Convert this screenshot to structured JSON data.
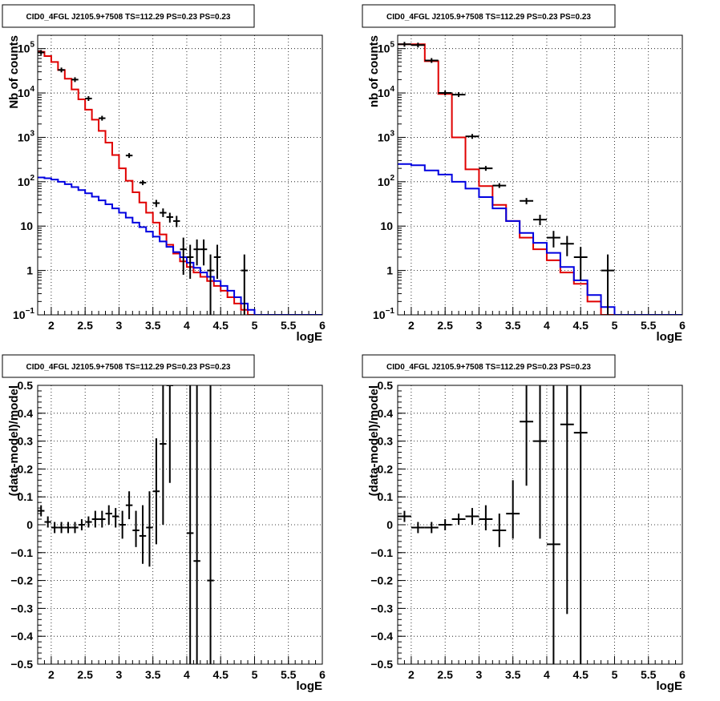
{
  "chart_data": [
    {
      "type": "line",
      "title": "CID0_4FGL J2105.9+7508 TS=112.29 PS=0.23 PS=0.23",
      "xlabel": "logE",
      "ylabel": "Nb of counts",
      "xlim": [
        1.8,
        6.0
      ],
      "ylim": [
        0.1,
        200000
      ],
      "yscale": "log",
      "grid": true,
      "xticks": [
        "2",
        "2.5",
        "3",
        "3.5",
        "4",
        "4.5",
        "5",
        "5.5",
        "6"
      ],
      "yticks": [
        {
          "v": 0.1,
          "base": "10",
          "exp": "−1"
        },
        {
          "v": 1,
          "label": "1"
        },
        {
          "v": 10,
          "label": "10"
        },
        {
          "v": 100,
          "base": "10",
          "exp": "2"
        },
        {
          "v": 1000,
          "base": "10",
          "exp": "3"
        },
        {
          "v": 10000,
          "base": "10",
          "exp": "4"
        },
        {
          "v": 100000,
          "base": "10",
          "exp": "5"
        }
      ],
      "series": [
        {
          "color": "#e00000",
          "kind": "step",
          "x0": 1.8,
          "dx": 0.1,
          "values": [
            85000,
            68000,
            50000,
            33000,
            21000,
            12000,
            7200,
            4200,
            2500,
            1400,
            760,
            400,
            200,
            105,
            58,
            34,
            20,
            12,
            6.5,
            3.8,
            2.4,
            1.6,
            1.2,
            0.9,
            0.72,
            0.58,
            0.45,
            0.35,
            0.25,
            0.18,
            0.13,
            0.1,
            0.1,
            0.1,
            0.1,
            0.1,
            0.1,
            0.1,
            0.1,
            0.1,
            0.1,
            0.1
          ]
        },
        {
          "color": "#0000e0",
          "kind": "step",
          "x0": 1.8,
          "dx": 0.1,
          "values": [
            125,
            120,
            112,
            100,
            88,
            76,
            65,
            55,
            46,
            38,
            31,
            25,
            20,
            15.5,
            12,
            9.5,
            7.5,
            5.8,
            4.5,
            3.4,
            2.6,
            2.0,
            1.5,
            1.15,
            0.9,
            0.72,
            0.58,
            0.45,
            0.35,
            0.25,
            0.18,
            0.13,
            0.1,
            0.1,
            0.1,
            0.1,
            0.1,
            0.1,
            0.1,
            0.1,
            0.1,
            0.1
          ]
        },
        {
          "color": "#000000",
          "kind": "points",
          "xerr": 0.05,
          "points": [
            {
              "x": 1.85,
              "y": 82000
            },
            {
              "x": 2.15,
              "y": 33000
            },
            {
              "x": 2.35,
              "y": 20000
            },
            {
              "x": 2.55,
              "y": 7500
            },
            {
              "x": 2.75,
              "y": 2700
            },
            {
              "x": 3.15,
              "y": 390,
              "lo": 370,
              "hi": 410
            },
            {
              "x": 3.35,
              "y": 95,
              "lo": 86,
              "hi": 105
            },
            {
              "x": 3.55,
              "y": 33,
              "lo": 27,
              "hi": 39
            },
            {
              "x": 3.65,
              "y": 20,
              "lo": 16,
              "hi": 25
            },
            {
              "x": 3.75,
              "y": 16,
              "lo": 12,
              "hi": 20
            },
            {
              "x": 3.85,
              "y": 13,
              "lo": 9.5,
              "hi": 17
            },
            {
              "x": 3.95,
              "y": 3,
              "lo": 0.8,
              "hi": 5.5
            },
            {
              "x": 4.05,
              "y": 2,
              "lo": 0.65,
              "hi": 3.8
            },
            {
              "x": 4.15,
              "y": 3,
              "lo": 1.3,
              "hi": 5
            },
            {
              "x": 4.25,
              "y": 3,
              "lo": 1.3,
              "hi": 5
            },
            {
              "x": 4.35,
              "y": 1,
              "lo": 0.1,
              "hi": 2.3
            },
            {
              "x": 4.45,
              "y": 2,
              "lo": 0.65,
              "hi": 3.8
            },
            {
              "x": 4.85,
              "y": 1,
              "lo": 0.1,
              "hi": 2.3
            }
          ]
        }
      ]
    },
    {
      "type": "line",
      "title": "CID0_4FGL J2105.9+7508 TS=112.29 PS=0.23 PS=0.23",
      "xlabel": "logE",
      "ylabel": "nb of counts",
      "xlim": [
        1.8,
        6.0
      ],
      "ylim": [
        0.1,
        200000
      ],
      "yscale": "log",
      "grid": true,
      "xticks": [
        "2",
        "2.5",
        "3",
        "3.5",
        "4",
        "4.5",
        "5",
        "5.5",
        "6"
      ],
      "yticks": [
        {
          "v": 0.1,
          "base": "10",
          "exp": "−1"
        },
        {
          "v": 1,
          "label": "1"
        },
        {
          "v": 10,
          "label": "10"
        },
        {
          "v": 100,
          "base": "10",
          "exp": "2"
        },
        {
          "v": 1000,
          "base": "10",
          "exp": "3"
        },
        {
          "v": 10000,
          "base": "10",
          "exp": "4"
        },
        {
          "v": 100000,
          "base": "10",
          "exp": "5"
        }
      ],
      "series": [
        {
          "color": "#e00000",
          "kind": "step",
          "x0": 1.8,
          "dx": 0.2,
          "values": [
            125000,
            125000,
            52000,
            9500,
            1000,
            190,
            80,
            30,
            13,
            5.5,
            3,
            1.7,
            0.9,
            0.5,
            0.2,
            0.1,
            0.1,
            0.1,
            0.1,
            0.1,
            0.1
          ]
        },
        {
          "color": "#0000e0",
          "kind": "step",
          "x0": 1.8,
          "dx": 0.2,
          "values": [
            250,
            235,
            180,
            145,
            100,
            70,
            45,
            25,
            13,
            7,
            4.2,
            2.5,
            1.2,
            0.6,
            0.28,
            0.15,
            0.1,
            0.1,
            0.1,
            0.1,
            0.1
          ]
        },
        {
          "color": "#000000",
          "kind": "points",
          "xerr": 0.1,
          "points": [
            {
              "x": 1.9,
              "y": 125000
            },
            {
              "x": 2.1,
              "y": 120000
            },
            {
              "x": 2.3,
              "y": 54000
            },
            {
              "x": 2.5,
              "y": 10000
            },
            {
              "x": 2.7,
              "y": 9200
            },
            {
              "x": 2.9,
              "y": 1050,
              "lo": 990,
              "hi": 1110
            },
            {
              "x": 3.1,
              "y": 200,
              "lo": 180,
              "hi": 220
            },
            {
              "x": 3.3,
              "y": 82,
              "lo": 73,
              "hi": 91
            },
            {
              "x": 3.7,
              "y": 37,
              "lo": 31,
              "hi": 43
            },
            {
              "x": 3.9,
              "y": 14,
              "lo": 10.5,
              "hi": 18
            },
            {
              "x": 4.1,
              "y": 5.5,
              "lo": 3.3,
              "hi": 7.8
            },
            {
              "x": 4.3,
              "y": 4,
              "lo": 2.1,
              "hi": 6
            },
            {
              "x": 4.5,
              "y": 2,
              "lo": 0.6,
              "hi": 3.4
            },
            {
              "x": 4.9,
              "y": 1,
              "lo": 0.1,
              "hi": 2.3
            }
          ]
        }
      ]
    },
    {
      "type": "scatter",
      "title": "CID0_4FGL J2105.9+7508 TS=112.29 PS=0.23 PS=0.23",
      "xlabel": "logE",
      "ylabel": "(data-model)/model",
      "xlim": [
        1.8,
        6.0
      ],
      "ylim": [
        -0.5,
        0.5
      ],
      "yscale": "linear",
      "grid": true,
      "xticks": [
        "2",
        "2.5",
        "3",
        "3.5",
        "4",
        "4.5",
        "5",
        "5.5",
        "6"
      ],
      "yticks": [
        {
          "v": -0.5,
          "label": "−0.5"
        },
        {
          "v": -0.4,
          "label": "−0.4"
        },
        {
          "v": -0.3,
          "label": "−0.3"
        },
        {
          "v": -0.2,
          "label": "−0.2"
        },
        {
          "v": -0.1,
          "label": "−0.1"
        },
        {
          "v": 0,
          "label": "0"
        },
        {
          "v": 0.1,
          "label": "0.1"
        },
        {
          "v": 0.2,
          "label": "0.2"
        },
        {
          "v": 0.3,
          "label": "0.3"
        },
        {
          "v": 0.4,
          "label": "0.4"
        },
        {
          "v": 0.5,
          "label": "0.5"
        }
      ],
      "series": [
        {
          "color": "#000000",
          "kind": "points",
          "xerr": 0.05,
          "points": [
            {
              "x": 1.85,
              "y": 0.05,
              "lo": 0.03,
              "hi": 0.07
            },
            {
              "x": 1.95,
              "y": 0.01,
              "lo": -0.01,
              "hi": 0.03
            },
            {
              "x": 2.05,
              "y": -0.01,
              "lo": -0.03,
              "hi": 0.01
            },
            {
              "x": 2.15,
              "y": -0.01,
              "lo": -0.03,
              "hi": 0.01
            },
            {
              "x": 2.25,
              "y": -0.01,
              "lo": -0.03,
              "hi": 0.01
            },
            {
              "x": 2.35,
              "y": -0.01,
              "lo": -0.03,
              "hi": 0.01
            },
            {
              "x": 2.45,
              "y": 0,
              "lo": -0.02,
              "hi": 0.02
            },
            {
              "x": 2.55,
              "y": 0.01,
              "lo": -0.01,
              "hi": 0.03
            },
            {
              "x": 2.65,
              "y": 0.02,
              "lo": -0.01,
              "hi": 0.05
            },
            {
              "x": 2.75,
              "y": 0.02,
              "lo": -0.01,
              "hi": 0.05
            },
            {
              "x": 2.85,
              "y": 0.04,
              "lo": 0.0,
              "hi": 0.07
            },
            {
              "x": 2.95,
              "y": 0.03,
              "lo": -0.01,
              "hi": 0.06
            },
            {
              "x": 3.05,
              "y": 0.0,
              "lo": -0.05,
              "hi": 0.05
            },
            {
              "x": 3.15,
              "y": 0.07,
              "lo": 0.02,
              "hi": 0.12
            },
            {
              "x": 3.25,
              "y": -0.02,
              "lo": -0.08,
              "hi": 0.05
            },
            {
              "x": 3.35,
              "y": -0.04,
              "lo": -0.14,
              "hi": 0.07
            },
            {
              "x": 3.45,
              "y": -0.01,
              "lo": -0.15,
              "hi": 0.12
            },
            {
              "x": 3.55,
              "y": 0.12,
              "lo": -0.07,
              "hi": 0.31
            },
            {
              "x": 3.65,
              "y": 0.29,
              "lo": 0.0,
              "hi": 0.5
            },
            {
              "x": 3.75,
              "y": 0.5,
              "lo": 0.15,
              "hi": 0.5
            },
            {
              "x": 4.05,
              "y": -0.03,
              "lo": -0.5,
              "hi": 0.5
            },
            {
              "x": 4.15,
              "y": -0.13,
              "lo": -0.5,
              "hi": 0.5
            },
            {
              "x": 4.35,
              "y": -0.2,
              "lo": -0.5,
              "hi": 0.5
            }
          ]
        }
      ]
    },
    {
      "type": "scatter",
      "title": "CID0_4FGL J2105.9+7508 TS=112.29 PS=0.23 PS=0.23",
      "xlabel": "logE",
      "ylabel": "(data-model)/model",
      "xlim": [
        1.8,
        6.0
      ],
      "ylim": [
        -0.5,
        0.5
      ],
      "yscale": "linear",
      "grid": true,
      "xticks": [
        "2",
        "2.5",
        "3",
        "3.5",
        "4",
        "4.5",
        "5",
        "5.5",
        "6"
      ],
      "yticks": [
        {
          "v": -0.5,
          "label": "−0.5"
        },
        {
          "v": -0.4,
          "label": "−0.4"
        },
        {
          "v": -0.3,
          "label": "−0.3"
        },
        {
          "v": -0.2,
          "label": "−0.2"
        },
        {
          "v": -0.1,
          "label": "−0.1"
        },
        {
          "v": 0,
          "label": "0"
        },
        {
          "v": 0.1,
          "label": "0.1"
        },
        {
          "v": 0.2,
          "label": "0.2"
        },
        {
          "v": 0.3,
          "label": "0.3"
        },
        {
          "v": 0.4,
          "label": "0.4"
        },
        {
          "v": 0.5,
          "label": "0.5"
        }
      ],
      "series": [
        {
          "color": "#000000",
          "kind": "points",
          "xerr": 0.1,
          "points": [
            {
              "x": 1.9,
              "y": 0.03,
              "lo": 0.01,
              "hi": 0.05
            },
            {
              "x": 2.1,
              "y": -0.01,
              "lo": -0.03,
              "hi": 0.01
            },
            {
              "x": 2.3,
              "y": -0.01,
              "lo": -0.03,
              "hi": 0.01
            },
            {
              "x": 2.5,
              "y": 0.0,
              "lo": -0.02,
              "hi": 0.02
            },
            {
              "x": 2.7,
              "y": 0.02,
              "lo": 0.0,
              "hi": 0.04
            },
            {
              "x": 2.9,
              "y": 0.03,
              "lo": 0.0,
              "hi": 0.06
            },
            {
              "x": 3.1,
              "y": 0.02,
              "lo": -0.02,
              "hi": 0.07
            },
            {
              "x": 3.3,
              "y": -0.02,
              "lo": -0.08,
              "hi": 0.04
            },
            {
              "x": 3.5,
              "y": 0.04,
              "lo": -0.05,
              "hi": 0.16
            },
            {
              "x": 3.7,
              "y": 0.37,
              "lo": 0.14,
              "hi": 0.5
            },
            {
              "x": 3.9,
              "y": 0.3,
              "lo": -0.05,
              "hi": 0.5
            },
            {
              "x": 4.1,
              "y": -0.07,
              "lo": -0.5,
              "hi": 0.5
            },
            {
              "x": 4.3,
              "y": 0.36,
              "lo": -0.32,
              "hi": 0.5
            },
            {
              "x": 4.5,
              "y": 0.33,
              "lo": -0.5,
              "hi": 0.5
            }
          ]
        }
      ]
    }
  ]
}
